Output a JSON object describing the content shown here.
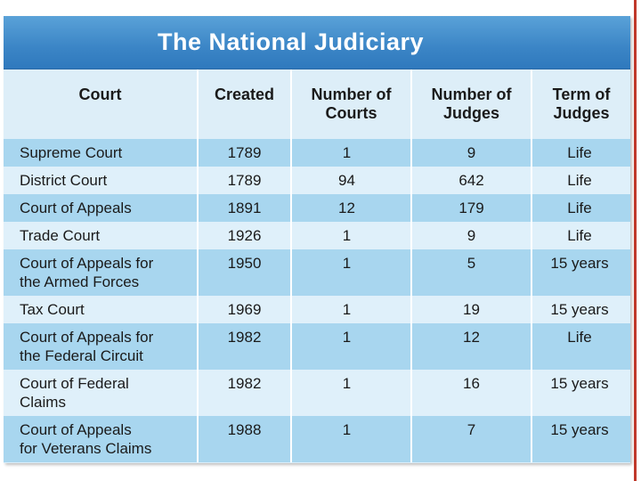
{
  "title": "The National Judiciary",
  "columns": [
    "Court",
    "Created",
    "Number of Courts",
    "Number of Judges",
    "Term of Judges"
  ],
  "header": {
    "court": "Court",
    "created": "Created",
    "courts_line1": "Number of",
    "courts_line2": "Courts",
    "judges_line1": "Number of",
    "judges_line2": "Judges",
    "term_line1": "Term of",
    "term_line2": "Judges"
  },
  "rows": [
    {
      "court_line1": "Supreme Court",
      "court_line2": "",
      "created": "1789",
      "courts": "1",
      "judges": "9",
      "term": "Life"
    },
    {
      "court_line1": "District Court",
      "court_line2": "",
      "created": "1789",
      "courts": "94",
      "judges": "642",
      "term": "Life"
    },
    {
      "court_line1": "Court of Appeals",
      "court_line2": "",
      "created": "1891",
      "courts": "12",
      "judges": "179",
      "term": "Life"
    },
    {
      "court_line1": "Trade Court",
      "court_line2": "",
      "created": "1926",
      "courts": "1",
      "judges": "9",
      "term": "Life"
    },
    {
      "court_line1": "Court of Appeals for",
      "court_line2": "the Armed Forces",
      "created": "1950",
      "courts": "1",
      "judges": "5",
      "term": "15 years"
    },
    {
      "court_line1": "Tax Court",
      "court_line2": "",
      "created": "1969",
      "courts": "1",
      "judges": "19",
      "term": "15 years"
    },
    {
      "court_line1": "Court of Appeals for",
      "court_line2": "the Federal Circuit",
      "created": "1982",
      "courts": "1",
      "judges": "12",
      "term": "Life"
    },
    {
      "court_line1": "Court of Federal",
      "court_line2": "Claims",
      "created": "1982",
      "courts": "1",
      "judges": "16",
      "term": "15 years"
    },
    {
      "court_line1": "Court of Appeals",
      "court_line2": "for Veterans Claims",
      "created": "1988",
      "courts": "1",
      "judges": "7",
      "term": "15 years"
    }
  ],
  "colors": {
    "title_bar": "#3b85c6",
    "row_dark": "#a8d6ef",
    "row_light": "#dff0fa",
    "header_bg": "#ddeef8",
    "accent_stripe": "#c0392b"
  }
}
